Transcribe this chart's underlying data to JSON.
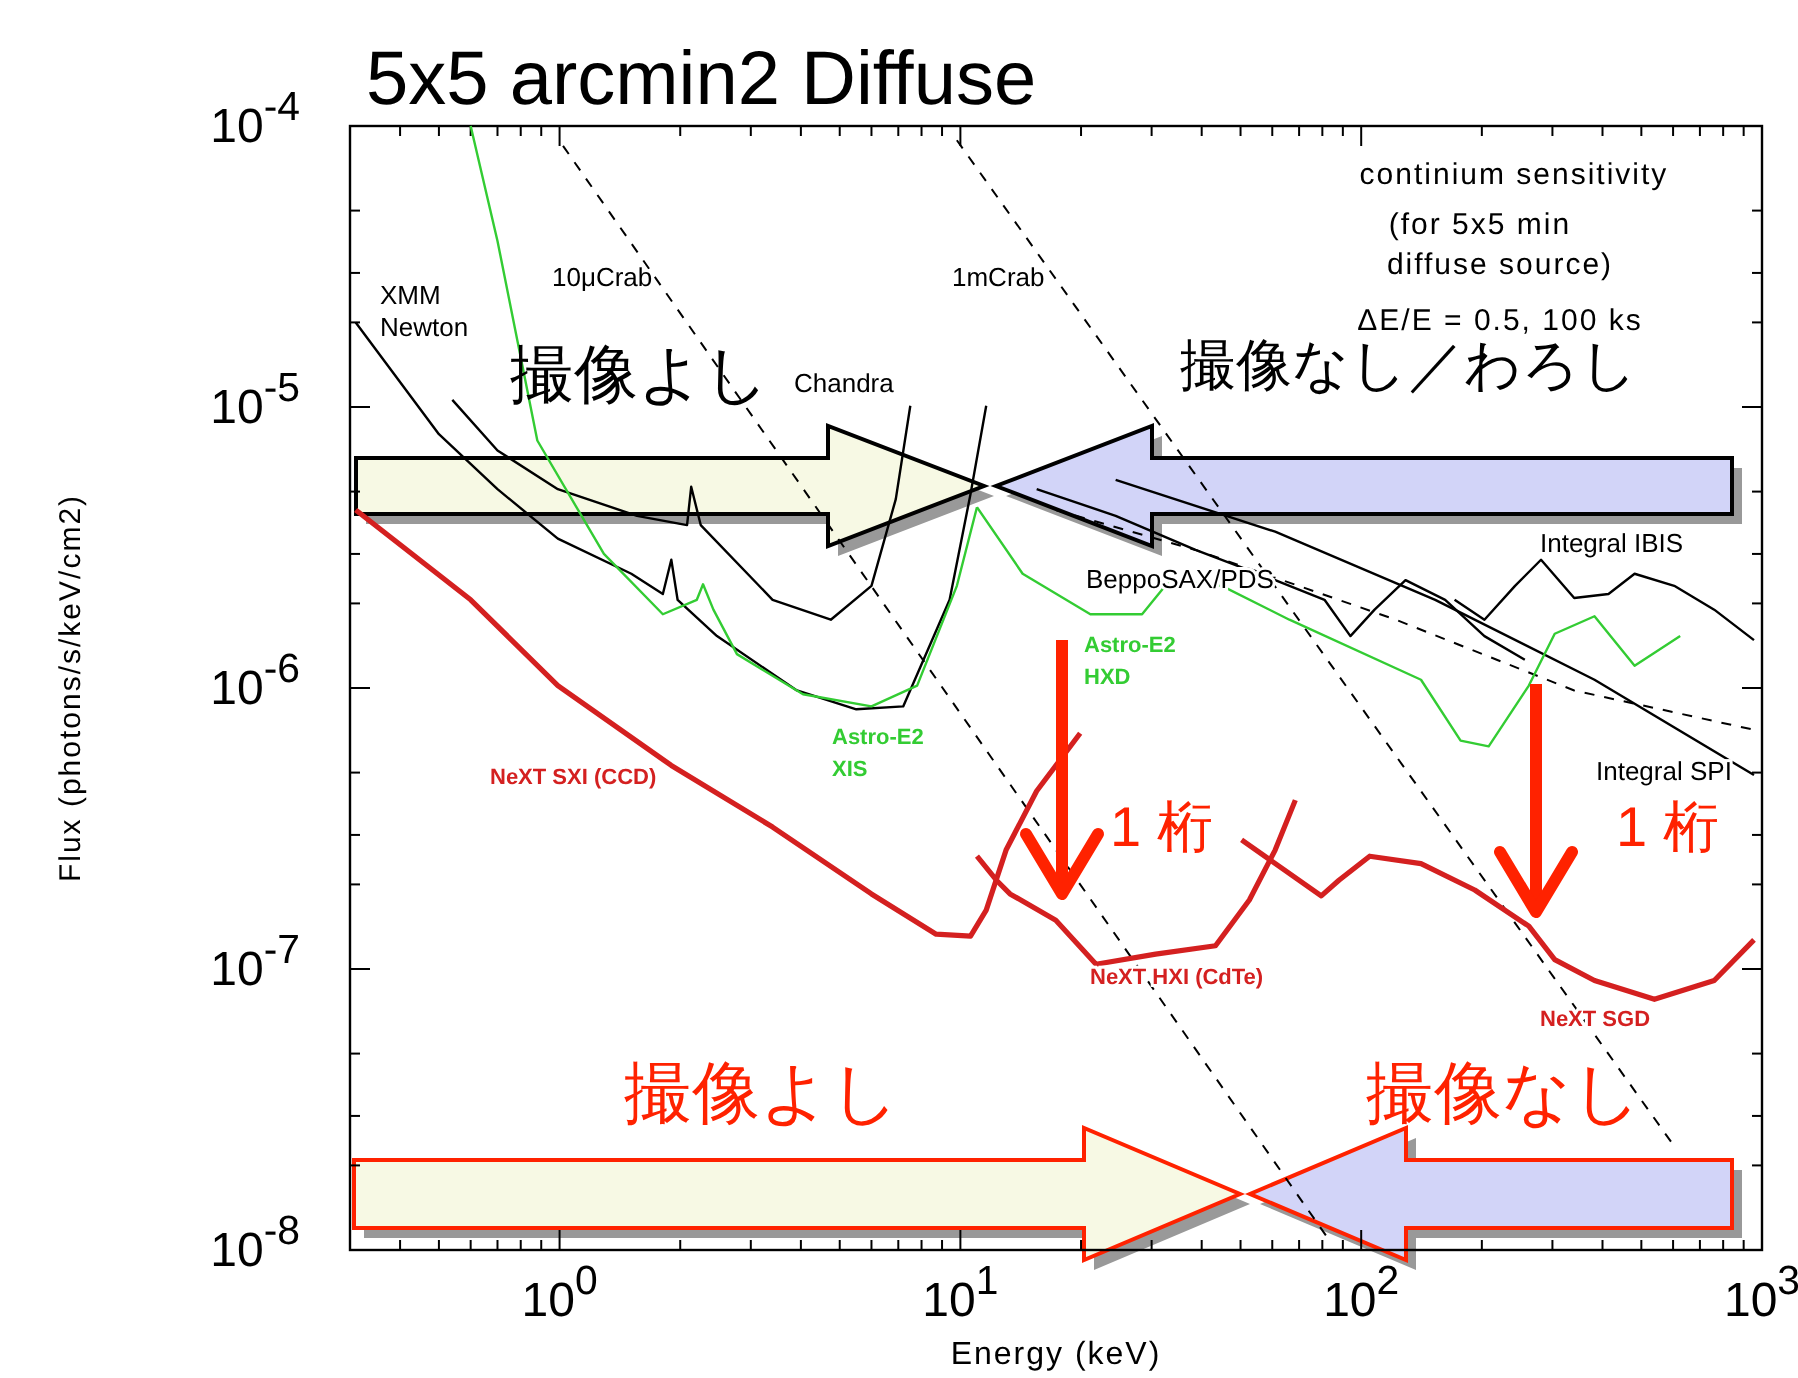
{
  "chart_data": {
    "type": "line",
    "title": "5x5 arcmin2 Diffuse",
    "xlabel": "Energy (keV)",
    "ylabel": "Flux (photons/s/keV/cm2)",
    "log": "xy",
    "xlim": [
      0.3,
      1000
    ],
    "ylim": [
      1e-08,
      0.0001
    ],
    "xticks": [
      {
        "value": 0.3,
        "label": null
      },
      {
        "value": 0.4,
        "label": null
      },
      {
        "value": 0.5,
        "label": null
      },
      {
        "value": 0.6,
        "label": null
      },
      {
        "value": 0.7,
        "label": null
      },
      {
        "value": 0.8,
        "label": null
      },
      {
        "value": 0.9,
        "label": null
      },
      {
        "value": 1,
        "label": "10$^{0}$"
      },
      {
        "value": 2,
        "label": null
      },
      {
        "value": 3,
        "label": null
      },
      {
        "value": 4,
        "label": null
      },
      {
        "value": 5,
        "label": null
      },
      {
        "value": 6,
        "label": null
      },
      {
        "value": 7,
        "label": null
      },
      {
        "value": 8,
        "label": null
      },
      {
        "value": 9,
        "label": null
      },
      {
        "value": 10,
        "label": "10$^{1}$"
      },
      {
        "value": 20,
        "label": null
      },
      {
        "value": 30,
        "label": null
      },
      {
        "value": 40,
        "label": null
      },
      {
        "value": 50,
        "label": null
      },
      {
        "value": 60,
        "label": null
      },
      {
        "value": 70,
        "label": null
      },
      {
        "value": 80,
        "label": null
      },
      {
        "value": 90,
        "label": null
      },
      {
        "value": 100,
        "label": "10$^{2}$"
      },
      {
        "value": 200,
        "label": null
      },
      {
        "value": 300,
        "label": null
      },
      {
        "value": 400,
        "label": null
      },
      {
        "value": 500,
        "label": null
      },
      {
        "value": 600,
        "label": null
      },
      {
        "value": 700,
        "label": null
      },
      {
        "value": 800,
        "label": null
      },
      {
        "value": 900,
        "label": null
      },
      {
        "value": 1000,
        "label": "10$^{3}$"
      }
    ],
    "yticks": [
      {
        "value": 1e-08,
        "label": "10$^{-8}$"
      },
      {
        "value": 2e-08,
        "label": null
      },
      {
        "value": 3e-08,
        "label": null
      },
      {
        "value": 5e-08,
        "label": null
      },
      {
        "value": 1e-07,
        "label": "10$^{-7}$"
      },
      {
        "value": 2e-07,
        "label": null
      },
      {
        "value": 3e-07,
        "label": null
      },
      {
        "value": 5e-07,
        "label": null
      },
      {
        "value": 1e-06,
        "label": "10$^{-6}$"
      },
      {
        "value": 2e-06,
        "label": null
      },
      {
        "value": 3e-06,
        "label": null
      },
      {
        "value": 5e-06,
        "label": null
      },
      {
        "value": 1e-05,
        "label": "10$^{-5}$"
      },
      {
        "value": 2e-05,
        "label": null
      },
      {
        "value": 3e-05,
        "label": null
      },
      {
        "value": 5e-05,
        "label": null
      },
      {
        "value": 0.0001,
        "label": "10$^{-4}$"
      }
    ],
    "series": [
      {
        "name": "XMM Newton",
        "color": "#000000",
        "x": [
          0.31,
          0.5,
          0.7,
          0.99,
          1.51,
          1.81,
          1.9,
          1.97,
          2.47,
          3.91,
          5.5,
          7.2,
          9.4,
          10.6,
          11.6
        ],
        "values": [
          2e-05,
          8e-06,
          5.1e-06,
          3.4e-06,
          2.55e-06,
          2.16e-06,
          2.86e-06,
          2.06e-06,
          1.53e-06,
          9.8e-07,
          8.4e-07,
          8.6e-07,
          2.06e-06,
          4.9e-06,
          1.01e-05
        ]
      },
      {
        "name": "Chandra",
        "color": "#000000",
        "x": [
          0.54,
          0.7,
          0.99,
          1.56,
          2.08,
          2.13,
          2.25,
          3.4,
          4.75,
          6.0,
          6.9,
          7.5
        ],
        "values": [
          1.06e-05,
          7e-06,
          5.1e-06,
          4.1e-06,
          3.8e-06,
          5.2e-06,
          3.8e-06,
          2.06e-06,
          1.75e-06,
          2.31e-06,
          4.7e-06,
          1.01e-05
        ]
      },
      {
        "name": "BeppoSAX/PDS",
        "color": "#000000",
        "x": [
          15.5,
          24.4,
          38.6,
          61,
          81,
          94,
          108,
          129,
          162,
          203,
          256
        ],
        "values": [
          5.1e-06,
          4.1e-06,
          3.1e-06,
          2.42e-06,
          2.06e-06,
          1.53e-06,
          1.9e-06,
          2.42e-06,
          2.06e-06,
          1.53e-06,
          1.26e-06
        ]
      },
      {
        "name": "Integral SPI",
        "color": "#000000",
        "x": [
          24.4,
          61,
          153,
          382,
          955
        ],
        "values": [
          5.5e-06,
          3.6e-06,
          2.06e-06,
          1.07e-06,
          4.9e-07
        ]
      },
      {
        "name": "Integral IBIS",
        "color": "#000000",
        "x": [
          171,
          203,
          242,
          281,
          340,
          414,
          481,
          604,
          760,
          955
        ],
        "values": [
          2.06e-06,
          1.75e-06,
          2.31e-06,
          2.86e-06,
          2.09e-06,
          2.16e-06,
          2.55e-06,
          2.31e-06,
          1.9e-06,
          1.48e-06
        ]
      },
      {
        "color": "#000000",
        "line_style": "dashed",
        "x": [
          17.3,
          38.6,
          122,
          340,
          955
        ],
        "values": [
          4.3e-06,
          3.1e-06,
          1.75e-06,
          9.8e-07,
          7.1e-07
        ]
      },
      {
        "name": "10μCrab",
        "color": "#000000",
        "line_style": "dashed",
        "x": [
          1.02,
          83
        ],
        "values": [
          8.5e-05,
          1.09e-08
        ]
      },
      {
        "name": "1mCrab",
        "color": "#000000",
        "line_style": "dashed",
        "x": [
          9.8,
          604
        ],
        "values": [
          8.9e-05,
          2.34e-08
        ]
      },
      {
        "name": "Astro-E2 XIS",
        "color": "#33cc33",
        "x": [
          0.6,
          0.7,
          0.88,
          1.29,
          1.81,
          2.2,
          2.28,
          2.42,
          2.77,
          4.05,
          6.0,
          7.8,
          9.8,
          11.0
        ],
        "values": [
          0.0001,
          3.9e-05,
          7.6e-06,
          3e-06,
          1.83e-06,
          2.06e-06,
          2.34e-06,
          1.9e-06,
          1.32e-06,
          9.5e-07,
          8.6e-07,
          1.02e-06,
          2.31e-06,
          4.4e-06
        ]
      },
      {
        "name": "Astro-E2 HXD",
        "color": "#33cc33",
        "x": [
          11.0,
          14.3,
          21.1,
          28.4,
          33.3,
          44.9,
          66.2,
          141,
          177,
          208,
          262,
          304,
          382,
          481,
          625
        ],
        "values": [
          4.4e-06,
          2.55e-06,
          1.83e-06,
          1.83e-06,
          2.42e-06,
          2.31e-06,
          1.75e-06,
          1.07e-06,
          6.5e-07,
          6.2e-07,
          1.02e-06,
          1.56e-06,
          1.8e-06,
          1.2e-06,
          1.53e-06
        ]
      },
      {
        "name": "NeXT SXI (CCD)",
        "color": "#d42020",
        "x": [
          0.31,
          0.6,
          0.99,
          1.9,
          3.4,
          6.0,
          8.7,
          10.6,
          11.6,
          13,
          15.5,
          19.9
        ],
        "values": [
          4.3e-06,
          2.06e-06,
          1.02e-06,
          5.3e-07,
          3.2e-07,
          1.85e-07,
          1.33e-07,
          1.31e-07,
          1.62e-07,
          2.65e-07,
          4.3e-07,
          6.9e-07
        ]
      },
      {
        "name": "NeXT HXI (CdTe)",
        "color": "#d42020",
        "x": [
          11.0,
          12.3,
          13.3,
          17.3,
          21.8,
          30.7,
          43.3,
          52.6,
          61,
          68.5
        ],
        "values": [
          2.52e-07,
          2.07e-07,
          1.85e-07,
          1.49e-07,
          1.04e-07,
          1.13e-07,
          1.21e-07,
          1.76e-07,
          2.65e-07,
          3.99e-07
        ]
      },
      {
        "name": "NeXT SGD",
        "color": "#d42020",
        "x": [
          50.3,
          79.5,
          88,
          105,
          141,
          192,
          262,
          304,
          382,
          539,
          760,
          955
        ],
        "values": [
          2.88e-07,
          1.82e-07,
          2.07e-07,
          2.52e-07,
          2.37e-07,
          1.91e-07,
          1.42e-07,
          1.08e-07,
          9.1e-08,
          7.8e-08,
          9.1e-08,
          1.27e-07
        ]
      }
    ],
    "annotations": [
      "continium sensitivity",
      "(for 5x5 min",
      "diffuse source)",
      "ΔE/E = 0.5, 100 ks",
      "撮像よし",
      "撮像なし／わろし",
      "1 桁",
      "1 桁",
      "撮像よし",
      "撮像なし"
    ]
  }
}
